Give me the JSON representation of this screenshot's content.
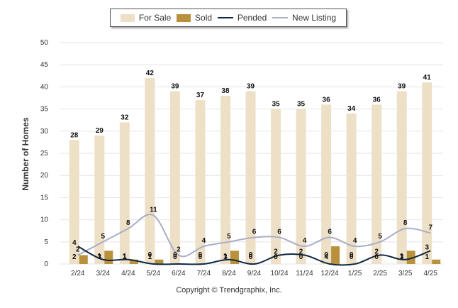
{
  "legend": {
    "for_sale": "For Sale",
    "sold": "Sold",
    "pended": "Pended",
    "new_listing": "New Listing"
  },
  "colors": {
    "for_sale": "#ede0c6",
    "sold": "#b9913d",
    "pended": "#0f2740",
    "new_listing": "#a9adc6",
    "grid": "#e6e6e6",
    "text": "#333333"
  },
  "copyright": "Copyright © Trendgraphix, Inc.",
  "chart_data": {
    "type": "bar",
    "categories": [
      "2/24",
      "3/24",
      "4/24",
      "5/24",
      "6/24",
      "7/24",
      "8/24",
      "9/24",
      "10/24",
      "11/24",
      "12/24",
      "1/25",
      "2/25",
      "3/25",
      "4/25"
    ],
    "ylabel": "Number of Homes",
    "xlabel": "",
    "ylim": [
      0,
      50
    ],
    "yticks": [
      0,
      5,
      10,
      15,
      20,
      25,
      30,
      35,
      40,
      45,
      50
    ],
    "grid": true,
    "legend_position": "top",
    "series": [
      {
        "name": "For Sale",
        "type": "bar",
        "values": [
          28,
          29,
          32,
          42,
          39,
          37,
          38,
          39,
          35,
          35,
          36,
          34,
          36,
          39,
          41
        ]
      },
      {
        "name": "Sold",
        "type": "bar",
        "values": [
          2,
          3,
          1,
          1,
          0,
          0,
          3,
          0,
          0,
          0,
          4,
          0,
          0,
          3,
          1
        ]
      },
      {
        "name": "Pended",
        "type": "line",
        "values": [
          4,
          1,
          1,
          0,
          0,
          0,
          1,
          0,
          2,
          2,
          0,
          0,
          2,
          1,
          3
        ]
      },
      {
        "name": "New Listing",
        "type": "line",
        "values": [
          2,
          5,
          8,
          11,
          2,
          4,
          5,
          6,
          6,
          4,
          6,
          4,
          5,
          8,
          7
        ]
      }
    ]
  }
}
